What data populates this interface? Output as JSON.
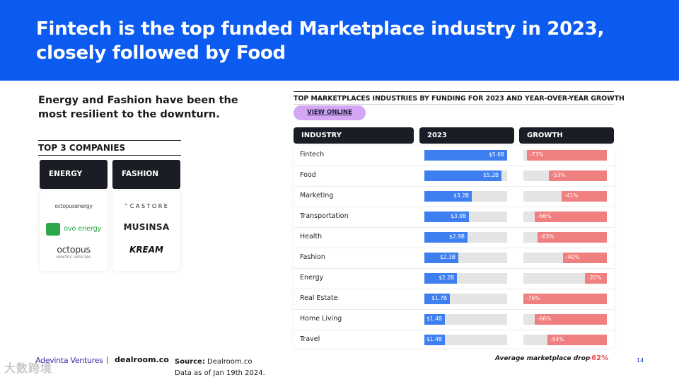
{
  "header": {
    "title": "Fintech is the top funded Marketplace industry in 2023, closely followed by Food"
  },
  "subtitle": "Energy and Fashion have been the most resilient to the downturn.",
  "top3": {
    "title": "TOP 3 COMPANIES",
    "columns": [
      {
        "label": "ENERGY",
        "companies": [
          "octopusenergy",
          "ovo energy",
          "octopus",
          "electric vehicles"
        ]
      },
      {
        "label": "FASHION",
        "companies": [
          "CASTORE",
          "MUSINSA",
          "KREAM"
        ]
      }
    ]
  },
  "chart_data": {
    "type": "table",
    "title": "TOP MARKETPLACES INDUSTRIES BY FUNDING FOR 2023 AND YEAR-OVER-YEAR GROWTH",
    "view_online": "VIEW ONLINE",
    "headers": [
      "INDUSTRY",
      "2023",
      "GROWTH"
    ],
    "max_funding": 5.6,
    "max_drop": 76,
    "funding_color": "#3d7ef0",
    "growth_color": "#f07f7f",
    "rows": [
      {
        "industry": "Fintech",
        "funding": 5.6,
        "funding_label": "$5.6B",
        "growth": -73,
        "growth_label": "-73%"
      },
      {
        "industry": "Food",
        "funding": 5.2,
        "funding_label": "$5.2B",
        "growth": -53,
        "growth_label": "-53%"
      },
      {
        "industry": "Marketing",
        "funding": 3.2,
        "funding_label": "$3.2B",
        "growth": -41,
        "growth_label": "-41%"
      },
      {
        "industry": "Transportation",
        "funding": 3.0,
        "funding_label": "$3.0B",
        "growth": -66,
        "growth_label": "-66%"
      },
      {
        "industry": "Health",
        "funding": 2.9,
        "funding_label": "$2.9B",
        "growth": -63,
        "growth_label": "-63%"
      },
      {
        "industry": "Fashion",
        "funding": 2.3,
        "funding_label": "$2.3B",
        "growth": -40,
        "growth_label": "-40%"
      },
      {
        "industry": "Energy",
        "funding": 2.2,
        "funding_label": "$2.2B",
        "growth": -20,
        "growth_label": "-20%"
      },
      {
        "industry": "Real Estate",
        "funding": 1.7,
        "funding_label": "$1.7B",
        "growth": -76,
        "growth_label": "-76%"
      },
      {
        "industry": "Home Living",
        "funding": 1.4,
        "funding_label": "$1.4B",
        "growth": -66,
        "growth_label": "-66%"
      },
      {
        "industry": "Travel",
        "funding": 1.4,
        "funding_label": "$1.4B",
        "growth": -54,
        "growth_label": "-54%"
      }
    ],
    "average_label": "Average marketplace drop",
    "average_value": "-62%"
  },
  "footer": {
    "brand1": "Adevinta Ventures",
    "separator": "|",
    "brand2": "dealroom.co",
    "source_label": "Source:",
    "source_value": "Dealroom.co",
    "data_as_of": "Data as of Jan 19th 2024.",
    "page_number": "14",
    "watermark": "大数跨境"
  }
}
